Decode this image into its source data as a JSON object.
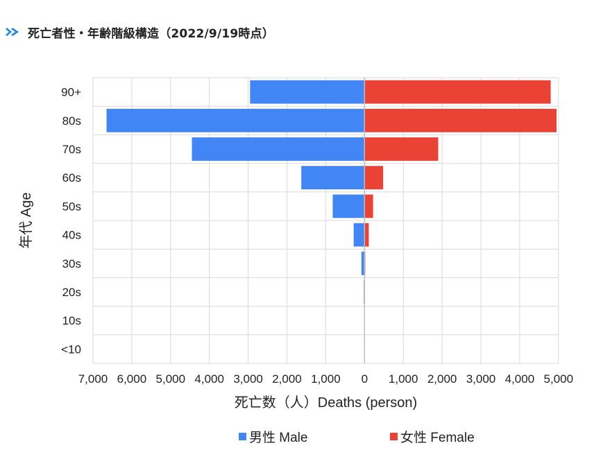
{
  "heading": {
    "title": "死亡者性・年齢階級構造（2022/9/19時点）",
    "icon": "double-chevron-right-icon",
    "icon_color": "#1e88e5"
  },
  "colors": {
    "male": "#4285f4",
    "female": "#ea4335",
    "grid": "#d9d9d9"
  },
  "chart_data": {
    "type": "bar",
    "orientation": "horizontal-population-pyramid",
    "categories": [
      "90+",
      "80s",
      "70s",
      "60s",
      "50s",
      "40s",
      "30s",
      "20s",
      "10s",
      "<10"
    ],
    "series": [
      {
        "name": "男性 Male",
        "side": "left",
        "color": "#4285f4",
        "values": [
          2950,
          6650,
          4450,
          1630,
          820,
          280,
          80,
          20,
          0,
          0
        ]
      },
      {
        "name": "女性 Female",
        "side": "right",
        "color": "#ea4335",
        "values": [
          4800,
          4950,
          1900,
          480,
          220,
          110,
          20,
          0,
          0,
          0
        ]
      }
    ],
    "xlim_male": [
      0,
      7000
    ],
    "xlim_female": [
      0,
      5000
    ],
    "x_tick_labels": [
      "7,000",
      "6,000",
      "5,000",
      "4,000",
      "3,000",
      "2,000",
      "1,000",
      "0",
      "1,000",
      "2,000",
      "3,000",
      "4,000",
      "5,000"
    ],
    "xlabel": "死亡数（人）Deaths (person)",
    "ylabel": "年代 Age",
    "grid": true,
    "legend_position": "bottom"
  }
}
